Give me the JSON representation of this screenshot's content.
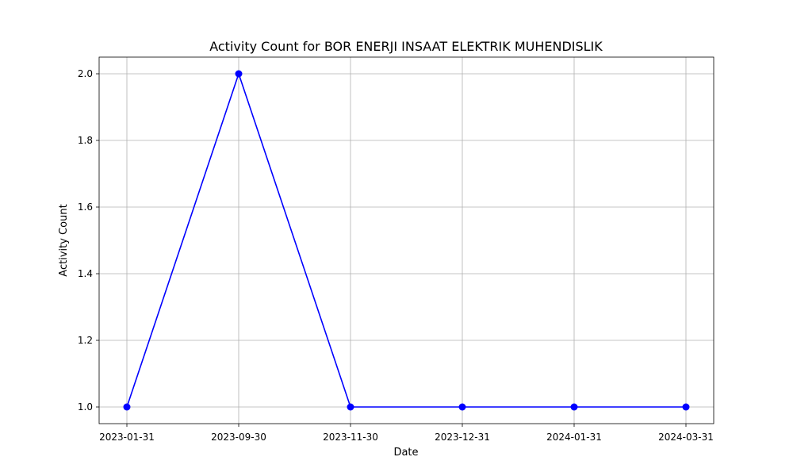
{
  "chart_data": {
    "type": "line",
    "title": "Activity Count for BOR ENERJI INSAAT ELEKTRIK MUHENDISLIK",
    "xlabel": "Date",
    "ylabel": "Activity Count",
    "categories": [
      "2023-01-31",
      "2023-09-30",
      "2023-11-30",
      "2023-12-31",
      "2024-01-31",
      "2024-03-31"
    ],
    "series": [
      {
        "values": [
          1,
          2,
          1,
          1,
          1,
          1
        ]
      }
    ],
    "ylim": [
      0.95,
      2.05
    ],
    "yticks": [
      "1.0",
      "1.2",
      "1.4",
      "1.6",
      "1.8",
      "2.0"
    ],
    "grid": true,
    "marker": "circle",
    "line_color": "#0000ff"
  }
}
